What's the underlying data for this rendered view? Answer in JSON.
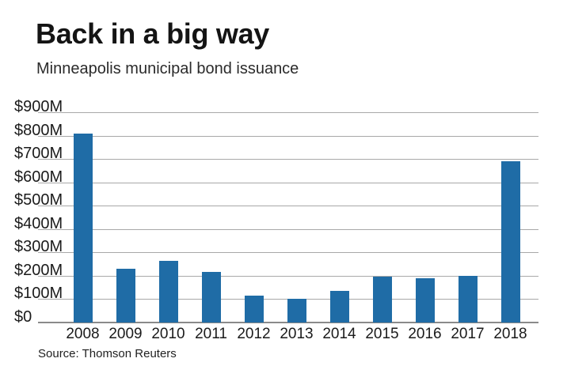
{
  "header": {
    "title": "Back in a big way",
    "subtitle": "Minneapolis municipal bond issuance"
  },
  "footer": {
    "source": "Source: Thomson Reuters"
  },
  "colors": {
    "bar": "#1f6ca6",
    "gridline": "#a8a8a8",
    "baseline": "#8a8a8a",
    "title_text": "#141414"
  },
  "chart_data": {
    "type": "bar",
    "title": "Back in a big way",
    "subtitle": "Minneapolis municipal bond issuance",
    "source": "Source: Thomson Reuters",
    "categories": [
      "2008",
      "2009",
      "2010",
      "2011",
      "2012",
      "2013",
      "2014",
      "2015",
      "2016",
      "2017",
      "2018"
    ],
    "values": [
      810,
      230,
      265,
      215,
      115,
      100,
      135,
      195,
      190,
      200,
      690
    ],
    "unit": "USD millions",
    "ylim": [
      0,
      900
    ],
    "y_tick_interval": 100,
    "y_tick_labels": [
      "$0",
      "$100M",
      "$200M",
      "$300M",
      "$400M",
      "$500M",
      "$600M",
      "$700M",
      "$800M",
      "$900M"
    ],
    "grid": true,
    "legend": false,
    "bar_color": "#1f6ca6"
  }
}
